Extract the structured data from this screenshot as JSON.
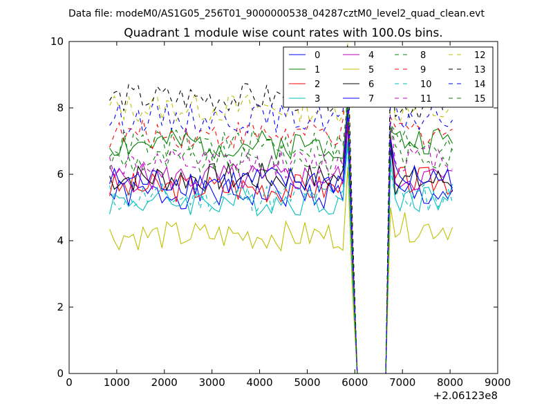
{
  "chart_data": {
    "type": "line",
    "suptitle": "Data file: modeM0/AS1G05_256T01_9000000538_04287cztM0_level2_quad_clean.evt",
    "title": "Quadrant 1 module wise count rates with 100.0s bins.",
    "xlabel": "",
    "ylabel": "",
    "x_offset_label": "+2.06123e8",
    "xlim": [
      0,
      9000
    ],
    "ylim": [
      0,
      10
    ],
    "x_ticks": [
      0,
      1000,
      2000,
      3000,
      4000,
      5000,
      6000,
      7000,
      8000,
      9000
    ],
    "y_ticks": [
      0,
      2,
      4,
      6,
      8,
      10
    ],
    "grid": false,
    "legend_position": "top-right",
    "legend_columns": 4,
    "x": [
      850,
      950,
      1050,
      1150,
      1250,
      1350,
      1450,
      1550,
      1650,
      1750,
      1850,
      1950,
      2050,
      2150,
      2250,
      2350,
      2450,
      2550,
      2650,
      2750,
      2850,
      2950,
      3050,
      3150,
      3250,
      3350,
      3450,
      3550,
      3650,
      3750,
      3850,
      3950,
      4050,
      4150,
      4250,
      4350,
      4450,
      4550,
      4650,
      4750,
      4850,
      4950,
      5050,
      5150,
      5250,
      5350,
      5450,
      5550,
      5650,
      5750,
      5850,
      5950,
      6050,
      6150,
      6250,
      6350,
      6450,
      6550,
      6650,
      6750,
      6850,
      6950,
      7050,
      7150,
      7250,
      7350,
      7450,
      7550,
      7650,
      7750,
      7850,
      7950,
      8050
    ],
    "series": [
      {
        "name": "0",
        "color": "#0000ff",
        "style": "solid",
        "level": 5.4,
        "plateau_start": 5.2,
        "gap_peak": 6.3,
        "after": 5.4
      },
      {
        "name": "1",
        "color": "#008000",
        "style": "solid",
        "level": 6.9,
        "plateau_start": 7.0,
        "gap_peak": 6.8,
        "after": 7.0
      },
      {
        "name": "2",
        "color": "#ff0000",
        "style": "solid",
        "level": 5.6,
        "plateau_start": 5.8,
        "gap_peak": 6.6,
        "after": 5.8
      },
      {
        "name": "3",
        "color": "#00bfbf",
        "style": "solid",
        "level": 5.2,
        "plateau_start": 5.4,
        "gap_peak": 5.9,
        "after": 5.3
      },
      {
        "name": "4",
        "color": "#bf00bf",
        "style": "solid",
        "level": 5.9,
        "plateau_start": 5.9,
        "gap_peak": 6.6,
        "after": 5.9
      },
      {
        "name": "5",
        "color": "#bfbf00",
        "style": "solid",
        "level": 4.15,
        "plateau_start": 4.7,
        "gap_peak": 4.8,
        "after": 4.4
      },
      {
        "name": "6",
        "color": "#000000",
        "style": "solid",
        "level": 5.9,
        "plateau_start": 6.4,
        "gap_peak": 6.9,
        "after": 5.8
      },
      {
        "name": "7",
        "color": "#0000ff",
        "style": "solid",
        "level": 5.8,
        "plateau_start": 5.6,
        "gap_peak": 6.8,
        "after": 5.9
      },
      {
        "name": "8",
        "color": "#008000",
        "style": "dashed",
        "level": 6.4,
        "plateau_start": 6.6,
        "gap_peak": 7.3,
        "after": 6.6
      },
      {
        "name": "9",
        "color": "#ff0000",
        "style": "dashed",
        "level": 7.2,
        "plateau_start": 7.3,
        "gap_peak": 7.4,
        "after": 7.3
      },
      {
        "name": "10",
        "color": "#00bfbf",
        "style": "dashed",
        "level": 5.3,
        "plateau_start": 5.1,
        "gap_peak": 5.8,
        "after": 5.3
      },
      {
        "name": "11",
        "color": "#bf00bf",
        "style": "dashed",
        "level": 6.3,
        "plateau_start": 6.5,
        "gap_peak": 7.2,
        "after": 6.5
      },
      {
        "name": "12",
        "color": "#bfbf00",
        "style": "dashed",
        "level": 8.0,
        "plateau_start": 7.8,
        "gap_peak": 8.6,
        "after": 7.9
      },
      {
        "name": "13",
        "color": "#000000",
        "style": "dashed",
        "level": 8.3,
        "plateau_start": 8.8,
        "gap_peak": 9.0,
        "after": 8.1
      },
      {
        "name": "14",
        "color": "#0000ff",
        "style": "dashed",
        "level": 7.7,
        "plateau_start": 7.6,
        "gap_peak": 8.1,
        "after": 7.7
      },
      {
        "name": "15",
        "color": "#008000",
        "style": "dashed",
        "level": 6.9,
        "plateau_start": 6.9,
        "gap_peak": 7.0,
        "after": 7.0
      }
    ]
  }
}
